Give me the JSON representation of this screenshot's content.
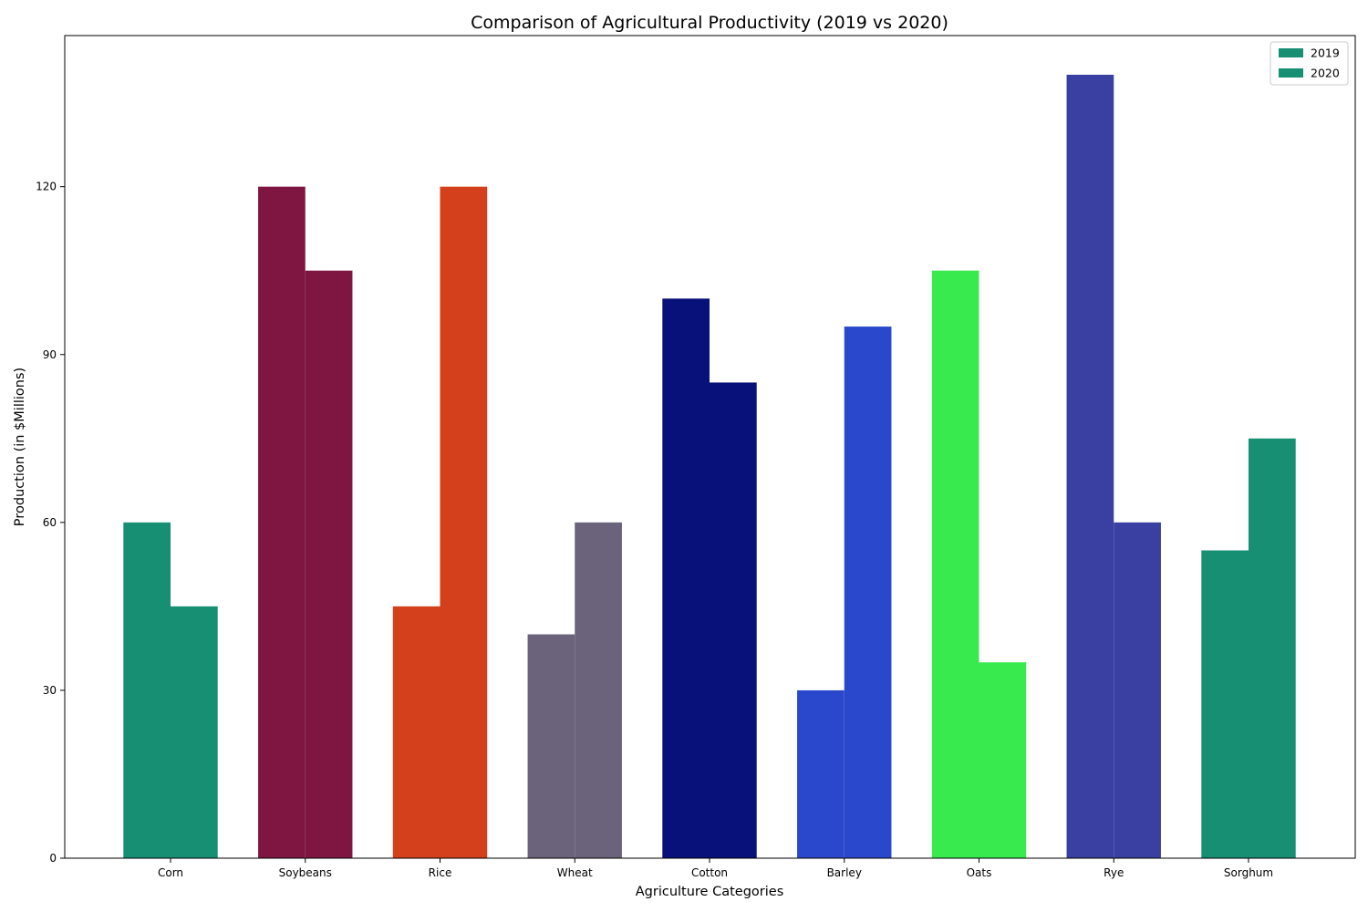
{
  "chart_data": {
    "type": "bar",
    "title": "Comparison of Agricultural Productivity (2019 vs 2020)",
    "xlabel": "Agriculture Categories",
    "ylabel": "Production (in $Millions)",
    "ylim": [
      0,
      147
    ],
    "yticks": [
      0,
      30,
      60,
      90,
      120
    ],
    "categories": [
      "Corn",
      "Soybeans",
      "Rice",
      "Wheat",
      "Cotton",
      "Barley",
      "Oats",
      "Rye",
      "Sorghum"
    ],
    "series": [
      {
        "name": "2019",
        "values": [
          60,
          120,
          45,
          40,
          100,
          30,
          105,
          140,
          55
        ]
      },
      {
        "name": "2020",
        "values": [
          45,
          105,
          120,
          60,
          85,
          95,
          35,
          60,
          75
        ]
      }
    ],
    "category_colors": [
      "#168f72",
      "#7e1641",
      "#d43f1c",
      "#6a637b",
      "#08117a",
      "#2a48cc",
      "#38ea4e",
      "#3a40a2",
      "#168f72"
    ],
    "legend": {
      "position": "top-right",
      "entries": [
        {
          "label": "2019",
          "color": "#168f72"
        },
        {
          "label": "2020",
          "color": "#168f72"
        }
      ]
    },
    "grid": false
  }
}
